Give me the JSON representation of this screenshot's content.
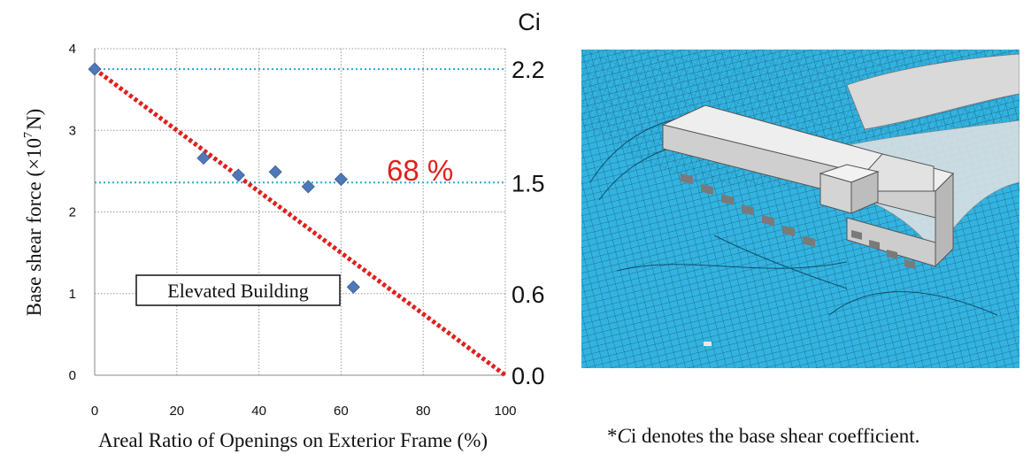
{
  "chart_data": {
    "type": "scatter",
    "xlabel": "Areal Ratio of Openings on Exterior Frame (%)",
    "ylabel_main": "Base shear force (×10",
    "ylabel_exp": "7",
    "ylabel_unit": "N)",
    "y2label": "Ci",
    "xlim": [
      0,
      100
    ],
    "ylim": [
      0,
      4
    ],
    "xticks": [
      "0",
      "20",
      "40",
      "60",
      "80",
      "100"
    ],
    "yticks": [
      "0",
      "1",
      "2",
      "3",
      "4"
    ],
    "y2ticks": [
      "0.0",
      "0.6",
      "1.5",
      "2.2"
    ],
    "y2tick_values": [
      0,
      1.0,
      2.36,
      3.75
    ],
    "grid": true,
    "points": [
      {
        "x": 0,
        "y": 3.75
      },
      {
        "x": 26.5,
        "y": 2.66
      },
      {
        "x": 35,
        "y": 2.45
      },
      {
        "x": 44,
        "y": 2.49
      },
      {
        "x": 52,
        "y": 2.31
      },
      {
        "x": 60,
        "y": 2.4
      },
      {
        "x": 63,
        "y": 1.08
      }
    ],
    "trend_line": {
      "from": [
        0,
        3.75
      ],
      "to": [
        100,
        0
      ],
      "color": "#e0201c"
    },
    "reference_lines": [
      {
        "y": 3.75,
        "color": "#2aa7d8"
      },
      {
        "y": 2.36,
        "color": "#2aa7d8"
      }
    ],
    "annotations": {
      "percent_label": "68 %",
      "box_label": "Elevated Building"
    },
    "colors": {
      "marker": "#4f78b8",
      "trend": "#e0201c",
      "reference": "#2aa7d8"
    }
  },
  "footnote": {
    "star": "*",
    "italic": "C",
    "rest": "i denotes the base shear coefficient."
  },
  "image": {
    "subject": "mesh-tsunami-flow-around-elevated-building",
    "colors": {
      "water": "#33b3e0",
      "building": "#d8d8d8"
    }
  }
}
